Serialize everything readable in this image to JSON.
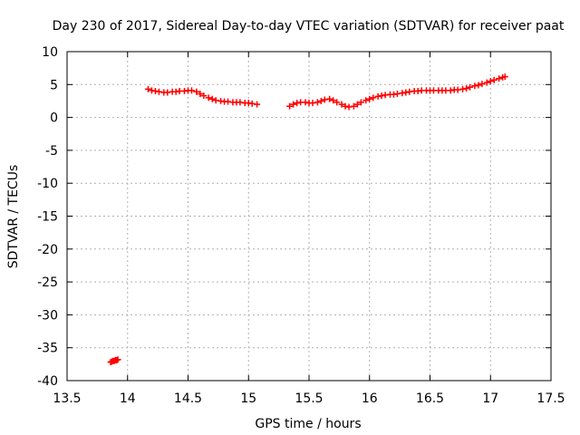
{
  "chart_data": {
    "type": "scatter",
    "title": "Day 230 of 2017, Sidereal Day-to-day VTEC variation (SDTVAR) for receiver paat",
    "xlabel": "GPS time / hours",
    "ylabel": "SDTVAR / TECUs",
    "xlim": [
      13.5,
      17.5
    ],
    "ylim": [
      -40,
      10
    ],
    "xticks": [
      13.5,
      14,
      14.5,
      15,
      15.5,
      16,
      16.5,
      17,
      17.5
    ],
    "yticks": [
      -40,
      -35,
      -30,
      -25,
      -20,
      -15,
      -10,
      -5,
      0,
      5,
      10
    ],
    "xtick_labels": [
      "13.5",
      "14",
      "14.5",
      "15",
      "15.5",
      "16",
      "16.5",
      "17",
      "17.5"
    ],
    "ytick_labels": [
      "-40",
      "-35",
      "-30",
      "-25",
      "-20",
      "-15",
      "-10",
      "-5",
      "0",
      "5",
      "10"
    ],
    "grid": true,
    "marker": "plus",
    "series": [
      {
        "name": "paat",
        "color": "#ff0000",
        "x": [
          13.86,
          13.87,
          13.88,
          13.89,
          13.9,
          13.91,
          13.92,
          14.17,
          14.2,
          14.23,
          14.26,
          14.3,
          14.33,
          14.37,
          14.4,
          14.43,
          14.47,
          14.5,
          14.53,
          14.57,
          14.6,
          14.63,
          14.67,
          14.7,
          14.73,
          14.77,
          14.8,
          14.83,
          14.87,
          14.9,
          14.93,
          14.97,
          15.0,
          15.03,
          15.07,
          15.34,
          15.37,
          15.4,
          15.43,
          15.47,
          15.5,
          15.53,
          15.57,
          15.6,
          15.63,
          15.67,
          15.7,
          15.73,
          15.77,
          15.8,
          15.83,
          15.87,
          15.9,
          15.93,
          15.97,
          16.0,
          16.03,
          16.07,
          16.1,
          16.13,
          16.17,
          16.2,
          16.23,
          16.27,
          16.3,
          16.33,
          16.37,
          16.4,
          16.43,
          16.47,
          16.5,
          16.53,
          16.57,
          16.6,
          16.63,
          16.67,
          16.7,
          16.73,
          16.77,
          16.8,
          16.83,
          16.87,
          16.9,
          16.93,
          16.97,
          17.0,
          17.03,
          17.07,
          17.1,
          17.12
        ],
        "y": [
          -37.2,
          -37.1,
          -37.0,
          -37.0,
          -36.9,
          -36.9,
          -36.8,
          4.3,
          4.1,
          4.0,
          3.9,
          3.8,
          3.8,
          3.9,
          3.9,
          4.0,
          4.0,
          4.1,
          4.1,
          3.9,
          3.6,
          3.3,
          3.0,
          2.8,
          2.6,
          2.5,
          2.4,
          2.4,
          2.3,
          2.3,
          2.3,
          2.2,
          2.2,
          2.1,
          2.0,
          1.7,
          2.0,
          2.2,
          2.3,
          2.3,
          2.2,
          2.2,
          2.3,
          2.5,
          2.7,
          2.8,
          2.6,
          2.3,
          2.0,
          1.7,
          1.6,
          1.7,
          2.0,
          2.3,
          2.6,
          2.8,
          3.0,
          3.2,
          3.3,
          3.4,
          3.5,
          3.5,
          3.6,
          3.7,
          3.8,
          3.9,
          4.0,
          4.0,
          4.1,
          4.1,
          4.1,
          4.1,
          4.1,
          4.1,
          4.1,
          4.1,
          4.2,
          4.2,
          4.3,
          4.4,
          4.6,
          4.8,
          4.9,
          5.1,
          5.3,
          5.5,
          5.7,
          5.9,
          6.1,
          6.2
        ]
      }
    ]
  }
}
